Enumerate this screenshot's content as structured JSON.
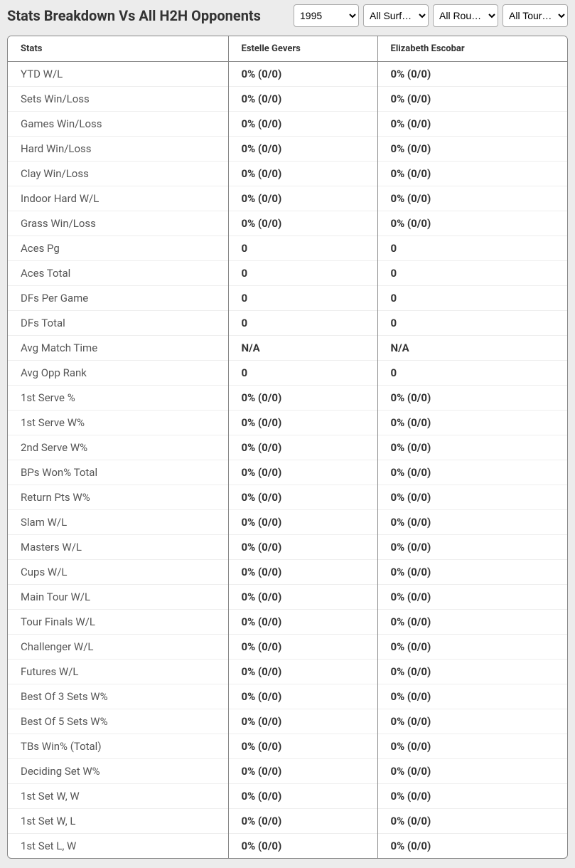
{
  "header": {
    "title": "Stats Breakdown Vs All H2H Opponents"
  },
  "filters": {
    "year": {
      "selected": "1995",
      "options": [
        "1995"
      ]
    },
    "surface": {
      "selected": "All Surf…",
      "options": [
        "All Surf…"
      ]
    },
    "round": {
      "selected": "All Rou…",
      "options": [
        "All Rou…"
      ]
    },
    "tour": {
      "selected": "All Tour…",
      "options": [
        "All Tour…"
      ]
    }
  },
  "table": {
    "columns": [
      "Stats",
      "Estelle Gevers",
      "Elizabeth Escobar"
    ],
    "rows": [
      {
        "label": "YTD W/L",
        "p1": "0% (0/0)",
        "p2": "0% (0/0)"
      },
      {
        "label": "Sets Win/Loss",
        "p1": "0% (0/0)",
        "p2": "0% (0/0)"
      },
      {
        "label": "Games Win/Loss",
        "p1": "0% (0/0)",
        "p2": "0% (0/0)"
      },
      {
        "label": "Hard Win/Loss",
        "p1": "0% (0/0)",
        "p2": "0% (0/0)"
      },
      {
        "label": "Clay Win/Loss",
        "p1": "0% (0/0)",
        "p2": "0% (0/0)"
      },
      {
        "label": "Indoor Hard W/L",
        "p1": "0% (0/0)",
        "p2": "0% (0/0)"
      },
      {
        "label": "Grass Win/Loss",
        "p1": "0% (0/0)",
        "p2": "0% (0/0)"
      },
      {
        "label": "Aces Pg",
        "p1": "0",
        "p2": "0"
      },
      {
        "label": "Aces Total",
        "p1": "0",
        "p2": "0"
      },
      {
        "label": "DFs Per Game",
        "p1": "0",
        "p2": "0"
      },
      {
        "label": "DFs Total",
        "p1": "0",
        "p2": "0"
      },
      {
        "label": "Avg Match Time",
        "p1": "N/A",
        "p2": "N/A"
      },
      {
        "label": "Avg Opp Rank",
        "p1": "0",
        "p2": "0"
      },
      {
        "label": "1st Serve %",
        "p1": "0% (0/0)",
        "p2": "0% (0/0)"
      },
      {
        "label": "1st Serve W%",
        "p1": "0% (0/0)",
        "p2": "0% (0/0)"
      },
      {
        "label": "2nd Serve W%",
        "p1": "0% (0/0)",
        "p2": "0% (0/0)"
      },
      {
        "label": "BPs Won% Total",
        "p1": "0% (0/0)",
        "p2": "0% (0/0)"
      },
      {
        "label": "Return Pts W%",
        "p1": "0% (0/0)",
        "p2": "0% (0/0)"
      },
      {
        "label": "Slam W/L",
        "p1": "0% (0/0)",
        "p2": "0% (0/0)"
      },
      {
        "label": "Masters W/L",
        "p1": "0% (0/0)",
        "p2": "0% (0/0)"
      },
      {
        "label": "Cups W/L",
        "p1": "0% (0/0)",
        "p2": "0% (0/0)"
      },
      {
        "label": "Main Tour W/L",
        "p1": "0% (0/0)",
        "p2": "0% (0/0)"
      },
      {
        "label": "Tour Finals W/L",
        "p1": "0% (0/0)",
        "p2": "0% (0/0)"
      },
      {
        "label": "Challenger W/L",
        "p1": "0% (0/0)",
        "p2": "0% (0/0)"
      },
      {
        "label": "Futures W/L",
        "p1": "0% (0/0)",
        "p2": "0% (0/0)"
      },
      {
        "label": "Best Of 3 Sets W%",
        "p1": "0% (0/0)",
        "p2": "0% (0/0)"
      },
      {
        "label": "Best Of 5 Sets W%",
        "p1": "0% (0/0)",
        "p2": "0% (0/0)"
      },
      {
        "label": "TBs Win% (Total)",
        "p1": "0% (0/0)",
        "p2": "0% (0/0)"
      },
      {
        "label": "Deciding Set W%",
        "p1": "0% (0/0)",
        "p2": "0% (0/0)"
      },
      {
        "label": "1st Set W, W",
        "p1": "0% (0/0)",
        "p2": "0% (0/0)"
      },
      {
        "label": "1st Set W, L",
        "p1": "0% (0/0)",
        "p2": "0% (0/0)"
      },
      {
        "label": "1st Set L, W",
        "p1": "0% (0/0)",
        "p2": "0% (0/0)"
      }
    ]
  },
  "colors": {
    "page_bg": "#ececec",
    "border": "#888888",
    "row_divider": "#eeeeee",
    "text": "#333333"
  }
}
